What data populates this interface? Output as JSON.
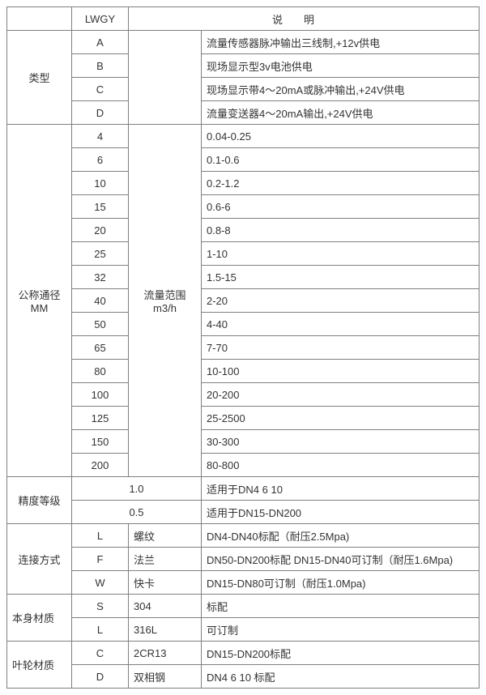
{
  "styling": {
    "border_color": "#808080",
    "background": "#ffffff",
    "text_color": "#333333",
    "font_size": 13,
    "font_family": "Microsoft YaHei"
  },
  "header": {
    "lwgy": "LWGY",
    "desc": "说明"
  },
  "type": {
    "label": "类型",
    "rows": [
      {
        "code": "A",
        "desc": "流量传感器脉冲输出三线制,+12v供电"
      },
      {
        "code": "B",
        "desc": "现场显示型3v电池供电"
      },
      {
        "code": "C",
        "desc": "现场显示带4～20mA或脉冲输出,+24V供电"
      },
      {
        "code": "D",
        "desc": "流量变送器4～20mA输出,+24V供电"
      }
    ]
  },
  "nominal": {
    "label_l1": "公称通径",
    "label_l2": "MM",
    "range_l1": "流量范围",
    "range_l2": "m3/h",
    "rows": [
      {
        "dn": "4",
        "range": "0.04-0.25"
      },
      {
        "dn": "6",
        "range": "0.1-0.6"
      },
      {
        "dn": "10",
        "range": "0.2-1.2"
      },
      {
        "dn": "15",
        "range": "0.6-6"
      },
      {
        "dn": "20",
        "range": "0.8-8"
      },
      {
        "dn": "25",
        "range": "1-10"
      },
      {
        "dn": "32",
        "range": "1.5-15"
      },
      {
        "dn": "40",
        "range": "2-20"
      },
      {
        "dn": "50",
        "range": "4-40"
      },
      {
        "dn": "65",
        "range": "7-70"
      },
      {
        "dn": "80",
        "range": "10-100"
      },
      {
        "dn": "100",
        "range": "20-200"
      },
      {
        "dn": "125",
        "range": "25-2500"
      },
      {
        "dn": "150",
        "range": "30-300"
      },
      {
        "dn": "200",
        "range": "80-800"
      }
    ]
  },
  "accuracy": {
    "label": "精度等级",
    "rows": [
      {
        "level": "1.0",
        "desc": "适用于DN4 6 10"
      },
      {
        "level": "0.5",
        "desc": "适用于DN15-DN200"
      }
    ]
  },
  "connection": {
    "label": "连接方式",
    "rows": [
      {
        "code": "L",
        "name": "螺纹",
        "desc": "DN4-DN40标配（耐压2.5Mpa)"
      },
      {
        "code": "F",
        "name": "法兰",
        "desc": "DN50-DN200标配 DN15-DN40可订制（耐压1.6Mpa)"
      },
      {
        "code": "W",
        "name": "快卡",
        "desc": "DN15-DN80可订制（耐压1.0Mpa)"
      }
    ]
  },
  "body_material": {
    "label": "本身材质",
    "rows": [
      {
        "code": "S",
        "name": "304",
        "desc": "标配"
      },
      {
        "code": "L",
        "name": "316L",
        "desc": "可订制"
      }
    ]
  },
  "impeller_material": {
    "label": "叶轮材质",
    "rows": [
      {
        "code": "C",
        "name": "2CR13",
        "desc": "DN15-DN200标配"
      },
      {
        "code": "D",
        "name": "双相钢",
        "desc": "DN4 6 10 标配"
      }
    ]
  }
}
